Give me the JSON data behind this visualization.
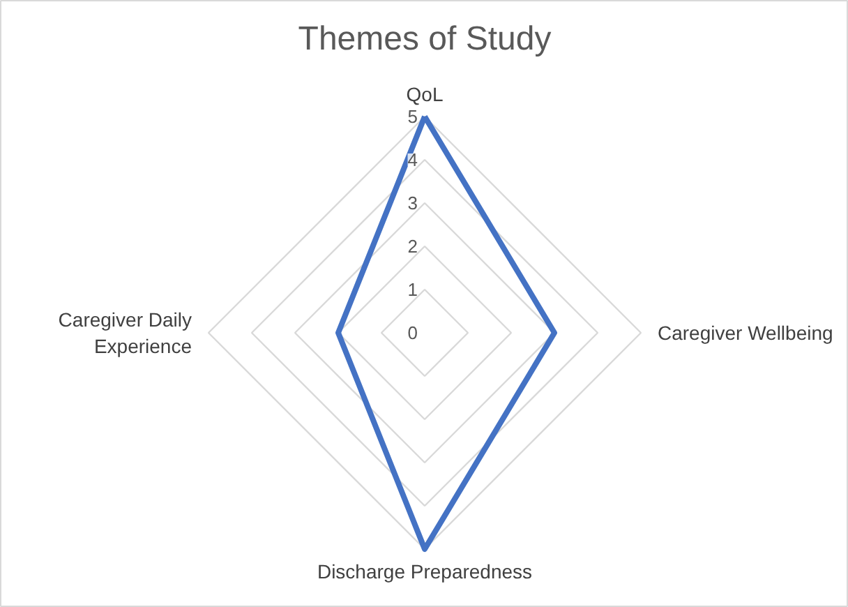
{
  "chart_data": {
    "type": "radar",
    "title": "Themes of Study",
    "categories": [
      "QoL",
      "Caregiver Wellbeing",
      "Discharge Preparedness",
      "Caregiver Daily\nExperience"
    ],
    "series": [
      {
        "color": "#4472c4",
        "values": [
          5,
          3,
          5,
          2
        ]
      }
    ],
    "ylim": [
      0,
      5
    ],
    "yticks": [
      0,
      1,
      2,
      3,
      4,
      5
    ],
    "grid": true,
    "marker": "none",
    "line_style": "solid"
  }
}
